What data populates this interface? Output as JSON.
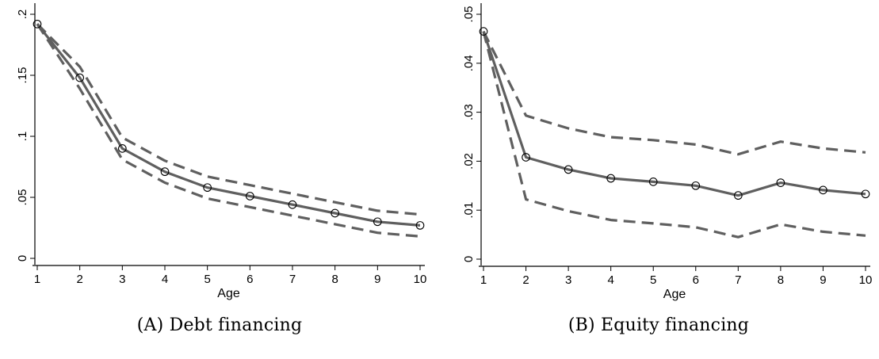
{
  "chart_data": [
    {
      "type": "line",
      "caption_letter": "(A)",
      "caption_text": "Debt financing",
      "xlabel": "Age",
      "ylabel": "",
      "xlim": [
        1,
        10
      ],
      "ylim": [
        0,
        0.2
      ],
      "x": [
        1,
        2,
        3,
        4,
        5,
        6,
        7,
        8,
        9,
        10
      ],
      "xticks": [
        "1",
        "2",
        "3",
        "4",
        "5",
        "6",
        "7",
        "8",
        "9",
        "10"
      ],
      "yticks": [
        {
          "value": 0,
          "label": "0"
        },
        {
          "value": 0.05,
          "label": ".05"
        },
        {
          "value": 0.1,
          "label": ".1"
        },
        {
          "value": 0.15,
          "label": ".15"
        },
        {
          "value": 0.2,
          "label": ".2"
        }
      ],
      "series": [
        {
          "role": "estimate",
          "style": "solid-with-circles",
          "values": [
            0.192,
            0.148,
            0.09,
            0.071,
            0.058,
            0.051,
            0.044,
            0.037,
            0.03,
            0.027
          ]
        },
        {
          "role": "upper-ci",
          "style": "dashed",
          "values": [
            0.192,
            0.157,
            0.099,
            0.08,
            0.067,
            0.06,
            0.053,
            0.046,
            0.039,
            0.036
          ]
        },
        {
          "role": "lower-ci",
          "style": "dashed",
          "values": [
            0.192,
            0.139,
            0.081,
            0.062,
            0.049,
            0.042,
            0.035,
            0.028,
            0.021,
            0.018
          ]
        }
      ],
      "colors": {
        "line": "#5f5f5f",
        "marker": "#000000"
      }
    },
    {
      "type": "line",
      "caption_letter": "(B)",
      "caption_text": "Equity financing",
      "xlabel": "Age",
      "ylabel": "",
      "xlim": [
        1,
        10
      ],
      "ylim": [
        0,
        0.05
      ],
      "x": [
        1,
        2,
        3,
        4,
        5,
        6,
        7,
        8,
        9,
        10
      ],
      "xticks": [
        "1",
        "2",
        "3",
        "4",
        "5",
        "6",
        "7",
        "8",
        "9",
        "10"
      ],
      "yticks": [
        {
          "value": 0,
          "label": "0"
        },
        {
          "value": 0.01,
          "label": ".01"
        },
        {
          "value": 0.02,
          "label": ".02"
        },
        {
          "value": 0.03,
          "label": ".03"
        },
        {
          "value": 0.04,
          "label": ".04"
        },
        {
          "value": 0.05,
          "label": ".05"
        }
      ],
      "series": [
        {
          "role": "estimate",
          "style": "solid-with-circles",
          "values": [
            0.0465,
            0.0208,
            0.0183,
            0.0165,
            0.0158,
            0.015,
            0.013,
            0.0156,
            0.0141,
            0.0133
          ]
        },
        {
          "role": "upper-ci",
          "style": "dashed",
          "values": [
            0.0465,
            0.0293,
            0.0267,
            0.0249,
            0.0243,
            0.0234,
            0.0214,
            0.024,
            0.0226,
            0.0218
          ]
        },
        {
          "role": "lower-ci",
          "style": "dashed",
          "values": [
            0.0465,
            0.0122,
            0.0098,
            0.008,
            0.0073,
            0.0065,
            0.0045,
            0.0071,
            0.0056,
            0.0048
          ]
        }
      ],
      "colors": {
        "line": "#5f5f5f",
        "marker": "#000000"
      }
    }
  ]
}
